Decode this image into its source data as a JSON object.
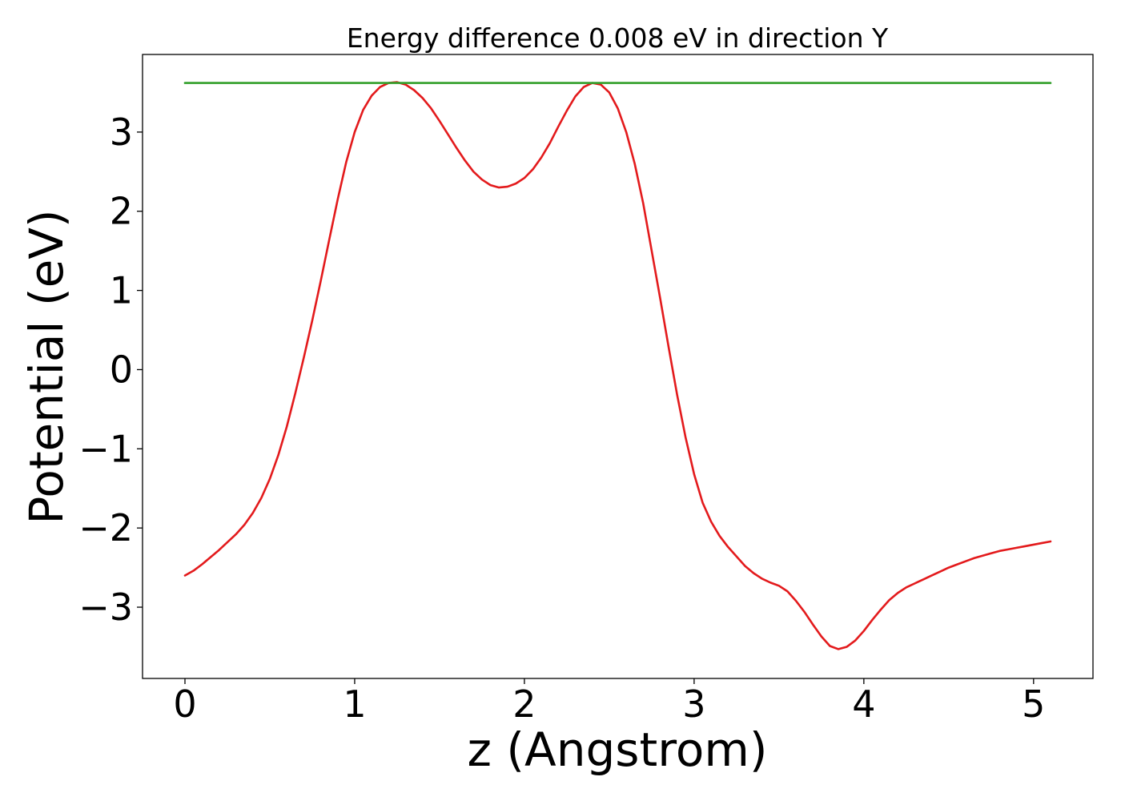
{
  "chart_data": {
    "type": "line",
    "title": "Energy difference 0.008 eV in direction Y",
    "xlabel": "z (Angstrom)",
    "ylabel": "Potential (eV)",
    "xlim": [
      -0.25,
      5.35
    ],
    "ylim": [
      -3.9,
      3.98
    ],
    "xticks": [
      0,
      1,
      2,
      3,
      4,
      5
    ],
    "xtick_labels": [
      "0",
      "1",
      "2",
      "3",
      "4",
      "5"
    ],
    "yticks": [
      -3,
      -2,
      -1,
      0,
      1,
      2,
      3
    ],
    "ytick_labels": [
      "−3",
      "−2",
      "−1",
      "0",
      "1",
      "2",
      "3"
    ],
    "grid": false,
    "series": [
      {
        "color": "#e31a1c",
        "x": [
          0,
          0.05,
          0.1,
          0.15,
          0.2,
          0.25,
          0.3,
          0.35,
          0.4,
          0.45,
          0.5,
          0.55,
          0.6,
          0.65,
          0.7,
          0.75,
          0.8,
          0.85,
          0.9,
          0.95,
          1.0,
          1.05,
          1.1,
          1.15,
          1.2,
          1.25,
          1.3,
          1.35,
          1.4,
          1.45,
          1.5,
          1.55,
          1.6,
          1.65,
          1.7,
          1.75,
          1.8,
          1.85,
          1.9,
          1.95,
          2.0,
          2.05,
          2.1,
          2.15,
          2.2,
          2.25,
          2.3,
          2.35,
          2.4,
          2.45,
          2.5,
          2.55,
          2.6,
          2.65,
          2.7,
          2.75,
          2.8,
          2.85,
          2.9,
          2.95,
          3.0,
          3.05,
          3.1,
          3.15,
          3.2,
          3.25,
          3.3,
          3.35,
          3.4,
          3.45,
          3.5,
          3.55,
          3.6,
          3.65,
          3.7,
          3.75,
          3.8,
          3.85,
          3.9,
          3.95,
          4.0,
          4.05,
          4.1,
          4.15,
          4.2,
          4.25,
          4.3,
          4.35,
          4.4,
          4.45,
          4.5,
          4.55,
          4.6,
          4.65,
          4.7,
          4.75,
          4.8,
          4.85,
          4.9,
          4.95,
          5.0,
          5.05,
          5.1
        ],
        "y": [
          -2.6,
          -2.54,
          -2.46,
          -2.37,
          -2.28,
          -2.18,
          -2.08,
          -1.96,
          -1.81,
          -1.62,
          -1.38,
          -1.08,
          -0.72,
          -0.3,
          0.15,
          0.62,
          1.12,
          1.64,
          2.15,
          2.62,
          3.0,
          3.28,
          3.46,
          3.57,
          3.62,
          3.63,
          3.6,
          3.53,
          3.43,
          3.3,
          3.14,
          2.97,
          2.8,
          2.64,
          2.5,
          2.4,
          2.33,
          2.3,
          2.31,
          2.35,
          2.42,
          2.53,
          2.68,
          2.86,
          3.07,
          3.27,
          3.45,
          3.57,
          3.62,
          3.6,
          3.5,
          3.3,
          3.0,
          2.6,
          2.1,
          1.5,
          0.9,
          0.28,
          -0.32,
          -0.86,
          -1.32,
          -1.68,
          -1.92,
          -2.1,
          -2.24,
          -2.36,
          -2.48,
          -2.57,
          -2.64,
          -2.69,
          -2.73,
          -2.8,
          -2.92,
          -3.06,
          -3.22,
          -3.37,
          -3.49,
          -3.53,
          -3.5,
          -3.42,
          -3.3,
          -3.16,
          -3.03,
          -2.91,
          -2.82,
          -2.75,
          -2.7,
          -2.65,
          -2.6,
          -2.55,
          -2.5,
          -2.46,
          -2.42,
          -2.38,
          -2.35,
          -2.32,
          -2.29,
          -2.27,
          -2.25,
          -2.23,
          -2.21,
          -2.19,
          -2.17
        ]
      },
      {
        "color": "#33a02c",
        "x": [
          0,
          5.1
        ],
        "y": [
          3.62,
          3.62
        ]
      }
    ]
  }
}
